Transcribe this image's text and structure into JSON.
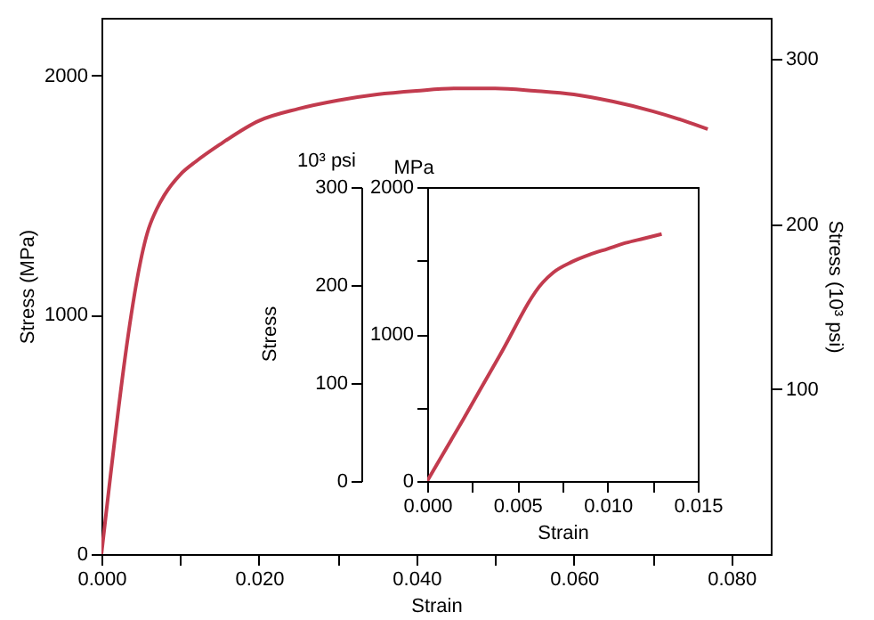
{
  "chart_data": [
    {
      "type": "line",
      "xlabel": "Strain",
      "ylabel": "Stress (MPa)",
      "y2label": "Stress (10³ psi)",
      "x": [
        0,
        0.006,
        0.007,
        0.008,
        0.01,
        0.012,
        0.015,
        0.02,
        0.025,
        0.03,
        0.035,
        0.04,
        0.045,
        0.05,
        0.055,
        0.06,
        0.065,
        0.07,
        0.074,
        0.077
      ],
      "series": [
        {
          "color": "#c23b4e",
          "values": [
            0,
            1360,
            1440,
            1500,
            1585,
            1640,
            1710,
            1810,
            1860,
            1895,
            1920,
            1935,
            1945,
            1945,
            1935,
            1920,
            1890,
            1850,
            1810,
            1775
          ]
        }
      ],
      "xlim": [
        0,
        0.085
      ],
      "ylim": [
        0,
        2240
      ],
      "y2lim": [
        0,
        325
      ],
      "xticks": [
        {
          "value": 0,
          "label": "0.000"
        },
        {
          "value": 0.01,
          "label": null
        },
        {
          "value": 0.02,
          "label": "0.020"
        },
        {
          "value": 0.03,
          "label": null
        },
        {
          "value": 0.04,
          "label": "0.040"
        },
        {
          "value": 0.05,
          "label": null
        },
        {
          "value": 0.06,
          "label": "0.060"
        },
        {
          "value": 0.07,
          "label": null
        },
        {
          "value": 0.08,
          "label": "0.080"
        }
      ],
      "yticks": [
        0,
        1000,
        2000
      ],
      "y2ticks": [
        100,
        200,
        300
      ]
    },
    {
      "type": "line",
      "xlabel": "Strain",
      "ylabel": "MPa",
      "y2label": "10³ psi",
      "annotations": [
        "Stress"
      ],
      "x": [
        0,
        0.002,
        0.004,
        0.0064,
        0.007,
        0.008,
        0.009,
        0.01,
        0.011,
        0.012,
        0.013
      ],
      "series": [
        {
          "color": "#c23b4e",
          "values": [
            0,
            420,
            850,
            1350,
            1420,
            1490,
            1540,
            1580,
            1620,
            1650,
            1680
          ]
        }
      ],
      "xlim": [
        0,
        0.015
      ],
      "ylim": [
        0,
        2000
      ],
      "y2lim": [
        0,
        300
      ],
      "xticks": [
        {
          "value": 0,
          "label": "0.000"
        },
        {
          "value": 0.0025,
          "label": null
        },
        {
          "value": 0.005,
          "label": "0.005"
        },
        {
          "value": 0.0075,
          "label": null
        },
        {
          "value": 0.01,
          "label": "0.010"
        },
        {
          "value": 0.0125,
          "label": null
        },
        {
          "value": 0.015,
          "label": "0.015"
        }
      ],
      "yticks": [
        0,
        {
          "value": 500,
          "label": null
        },
        1000,
        {
          "value": 1500,
          "label": null
        },
        2000
      ],
      "y2ticks": [
        0,
        100,
        200,
        300
      ]
    }
  ]
}
